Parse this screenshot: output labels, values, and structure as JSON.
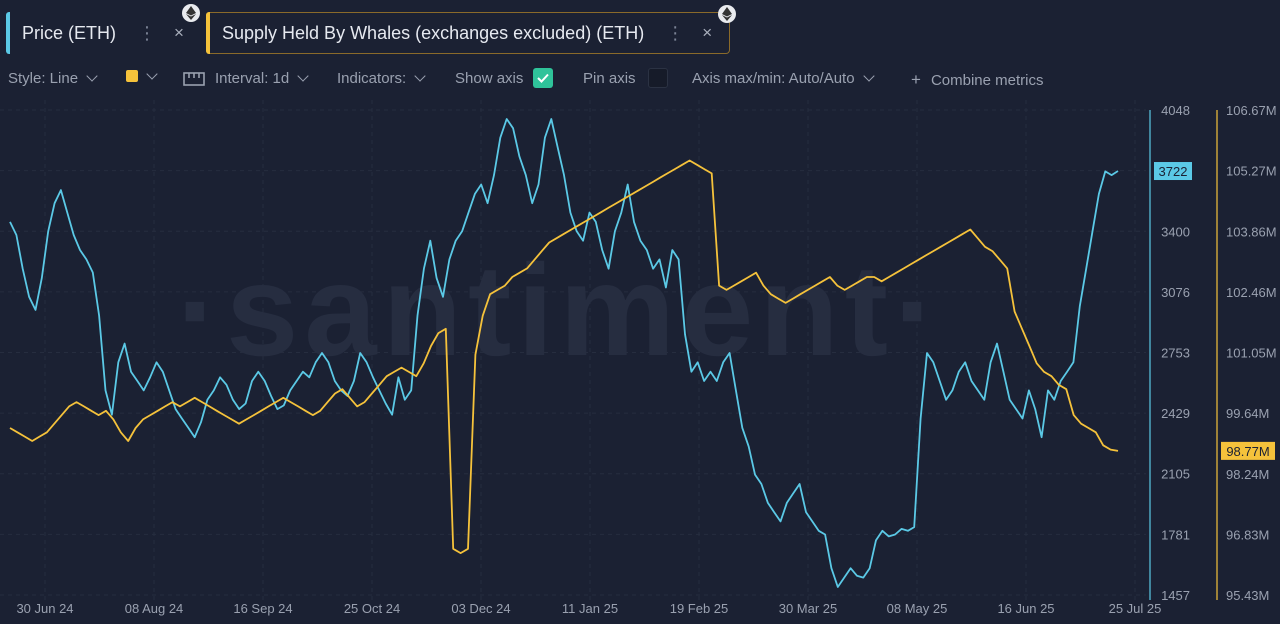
{
  "tabs": [
    {
      "label": "Price (ETH)",
      "color": "#5bc9e6",
      "menu": "⋮",
      "close": "×",
      "icon": "ethereum-icon"
    },
    {
      "label": "Supply Held By Whales (exchanges excluded) (ETH)",
      "color": "#f5c23b",
      "menu": "⋮",
      "close": "×",
      "icon": "ethereum-icon"
    }
  ],
  "toolbar": {
    "style": "Style: Line",
    "interval": "Interval: 1d",
    "indicators": "Indicators:",
    "show_axis": "Show axis",
    "pin_axis": "Pin axis",
    "axis_maxmin": "Axis max/min: Auto/Auto",
    "combine": "Combine metrics",
    "combine_icon": "+"
  },
  "watermark": "·santiment·",
  "chart_data": {
    "type": "line",
    "x_tick_labels": [
      "30 Jun 24",
      "08 Aug 24",
      "16 Sep 24",
      "25 Oct 24",
      "03 Dec 24",
      "11 Jan 25",
      "19 Feb 25",
      "30 Mar 25",
      "08 May 25",
      "16 Jun 25",
      "25 Jul 25"
    ],
    "price_axis": {
      "ticks": [
        "4048",
        "3400",
        "3076",
        "2753",
        "2429",
        "2105",
        "1781",
        "1457"
      ],
      "min": 1457,
      "max": 4048,
      "current_label": "3722",
      "color": "#5bc9e6"
    },
    "whales_axis": {
      "ticks": [
        "106.67M",
        "105.27M",
        "103.86M",
        "102.46M",
        "101.05M",
        "99.64M",
        "98.24M",
        "96.83M",
        "95.43M"
      ],
      "min": 95.43,
      "max": 106.67,
      "current_label": "98.77M",
      "color": "#f5c23b"
    },
    "series": [
      {
        "name": "Price (ETH)",
        "axis": "left",
        "color": "#5bc9e6",
        "values": [
          3450,
          3380,
          3200,
          3050,
          2980,
          3150,
          3400,
          3550,
          3620,
          3500,
          3380,
          3300,
          3250,
          3180,
          2950,
          2550,
          2420,
          2700,
          2800,
          2650,
          2600,
          2550,
          2620,
          2700,
          2650,
          2550,
          2450,
          2400,
          2350,
          2300,
          2380,
          2500,
          2550,
          2620,
          2580,
          2500,
          2450,
          2480,
          2600,
          2650,
          2600,
          2520,
          2450,
          2470,
          2550,
          2600,
          2650,
          2620,
          2700,
          2750,
          2700,
          2600,
          2550,
          2520,
          2600,
          2750,
          2700,
          2620,
          2550,
          2480,
          2420,
          2620,
          2500,
          2550,
          2950,
          3200,
          3350,
          3150,
          3050,
          3250,
          3350,
          3400,
          3500,
          3600,
          3650,
          3550,
          3700,
          3900,
          4000,
          3950,
          3800,
          3700,
          3550,
          3650,
          3900,
          4000,
          3850,
          3700,
          3500,
          3400,
          3350,
          3500,
          3450,
          3300,
          3200,
          3400,
          3500,
          3650,
          3450,
          3350,
          3300,
          3200,
          3250,
          3100,
          3300,
          3250,
          2850,
          2650,
          2700,
          2600,
          2650,
          2600,
          2700,
          2750,
          2550,
          2350,
          2250,
          2100,
          2050,
          1950,
          1900,
          1850,
          1950,
          2000,
          2050,
          1900,
          1850,
          1800,
          1780,
          1600,
          1500,
          1550,
          1600,
          1560,
          1550,
          1600,
          1750,
          1800,
          1770,
          1780,
          1810,
          1800,
          1820,
          2400,
          2750,
          2700,
          2600,
          2500,
          2550,
          2650,
          2700,
          2600,
          2550,
          2500,
          2700,
          2800,
          2650,
          2500,
          2450,
          2400,
          2550,
          2450,
          2300,
          2550,
          2500,
          2600,
          2650,
          2700,
          3000,
          3200,
          3400,
          3600,
          3720,
          3700,
          3722
        ]
      },
      {
        "name": "Supply Held By Whales (exchanges excluded) (ETH)",
        "axis": "right",
        "color": "#f5c23b",
        "values": [
          99.3,
          99.2,
          99.1,
          99.0,
          99.1,
          99.2,
          99.4,
          99.6,
          99.8,
          99.9,
          99.8,
          99.7,
          99.6,
          99.7,
          99.5,
          99.2,
          99.0,
          99.3,
          99.5,
          99.6,
          99.7,
          99.8,
          99.9,
          99.8,
          99.9,
          100.0,
          99.9,
          99.8,
          99.7,
          99.6,
          99.5,
          99.4,
          99.5,
          99.6,
          99.7,
          99.8,
          99.9,
          100.0,
          99.9,
          99.8,
          99.7,
          99.6,
          99.7,
          99.9,
          100.1,
          100.2,
          100.0,
          99.8,
          99.9,
          100.1,
          100.3,
          100.5,
          100.6,
          100.7,
          100.6,
          100.5,
          100.8,
          101.2,
          101.5,
          101.6,
          96.5,
          96.4,
          96.5,
          101.0,
          101.9,
          102.4,
          102.5,
          102.6,
          102.8,
          102.9,
          103.0,
          103.2,
          103.4,
          103.6,
          103.7,
          103.8,
          103.9,
          104.0,
          104.1,
          104.2,
          104.3,
          104.4,
          104.5,
          104.6,
          104.7,
          104.8,
          104.9,
          105.0,
          105.1,
          105.2,
          105.3,
          105.4,
          105.5,
          105.4,
          105.3,
          105.2,
          102.6,
          102.5,
          102.6,
          102.7,
          102.8,
          102.9,
          102.6,
          102.4,
          102.3,
          102.2,
          102.3,
          102.4,
          102.5,
          102.6,
          102.7,
          102.8,
          102.6,
          102.5,
          102.6,
          102.7,
          102.8,
          102.8,
          102.7,
          102.8,
          102.9,
          103.0,
          103.1,
          103.2,
          103.3,
          103.4,
          103.5,
          103.6,
          103.7,
          103.8,
          103.9,
          103.7,
          103.5,
          103.4,
          103.2,
          103.0,
          102.0,
          101.6,
          101.2,
          100.8,
          100.6,
          100.5,
          100.3,
          100.2,
          99.6,
          99.4,
          99.3,
          99.2,
          98.9,
          98.8,
          98.77
        ]
      }
    ]
  }
}
